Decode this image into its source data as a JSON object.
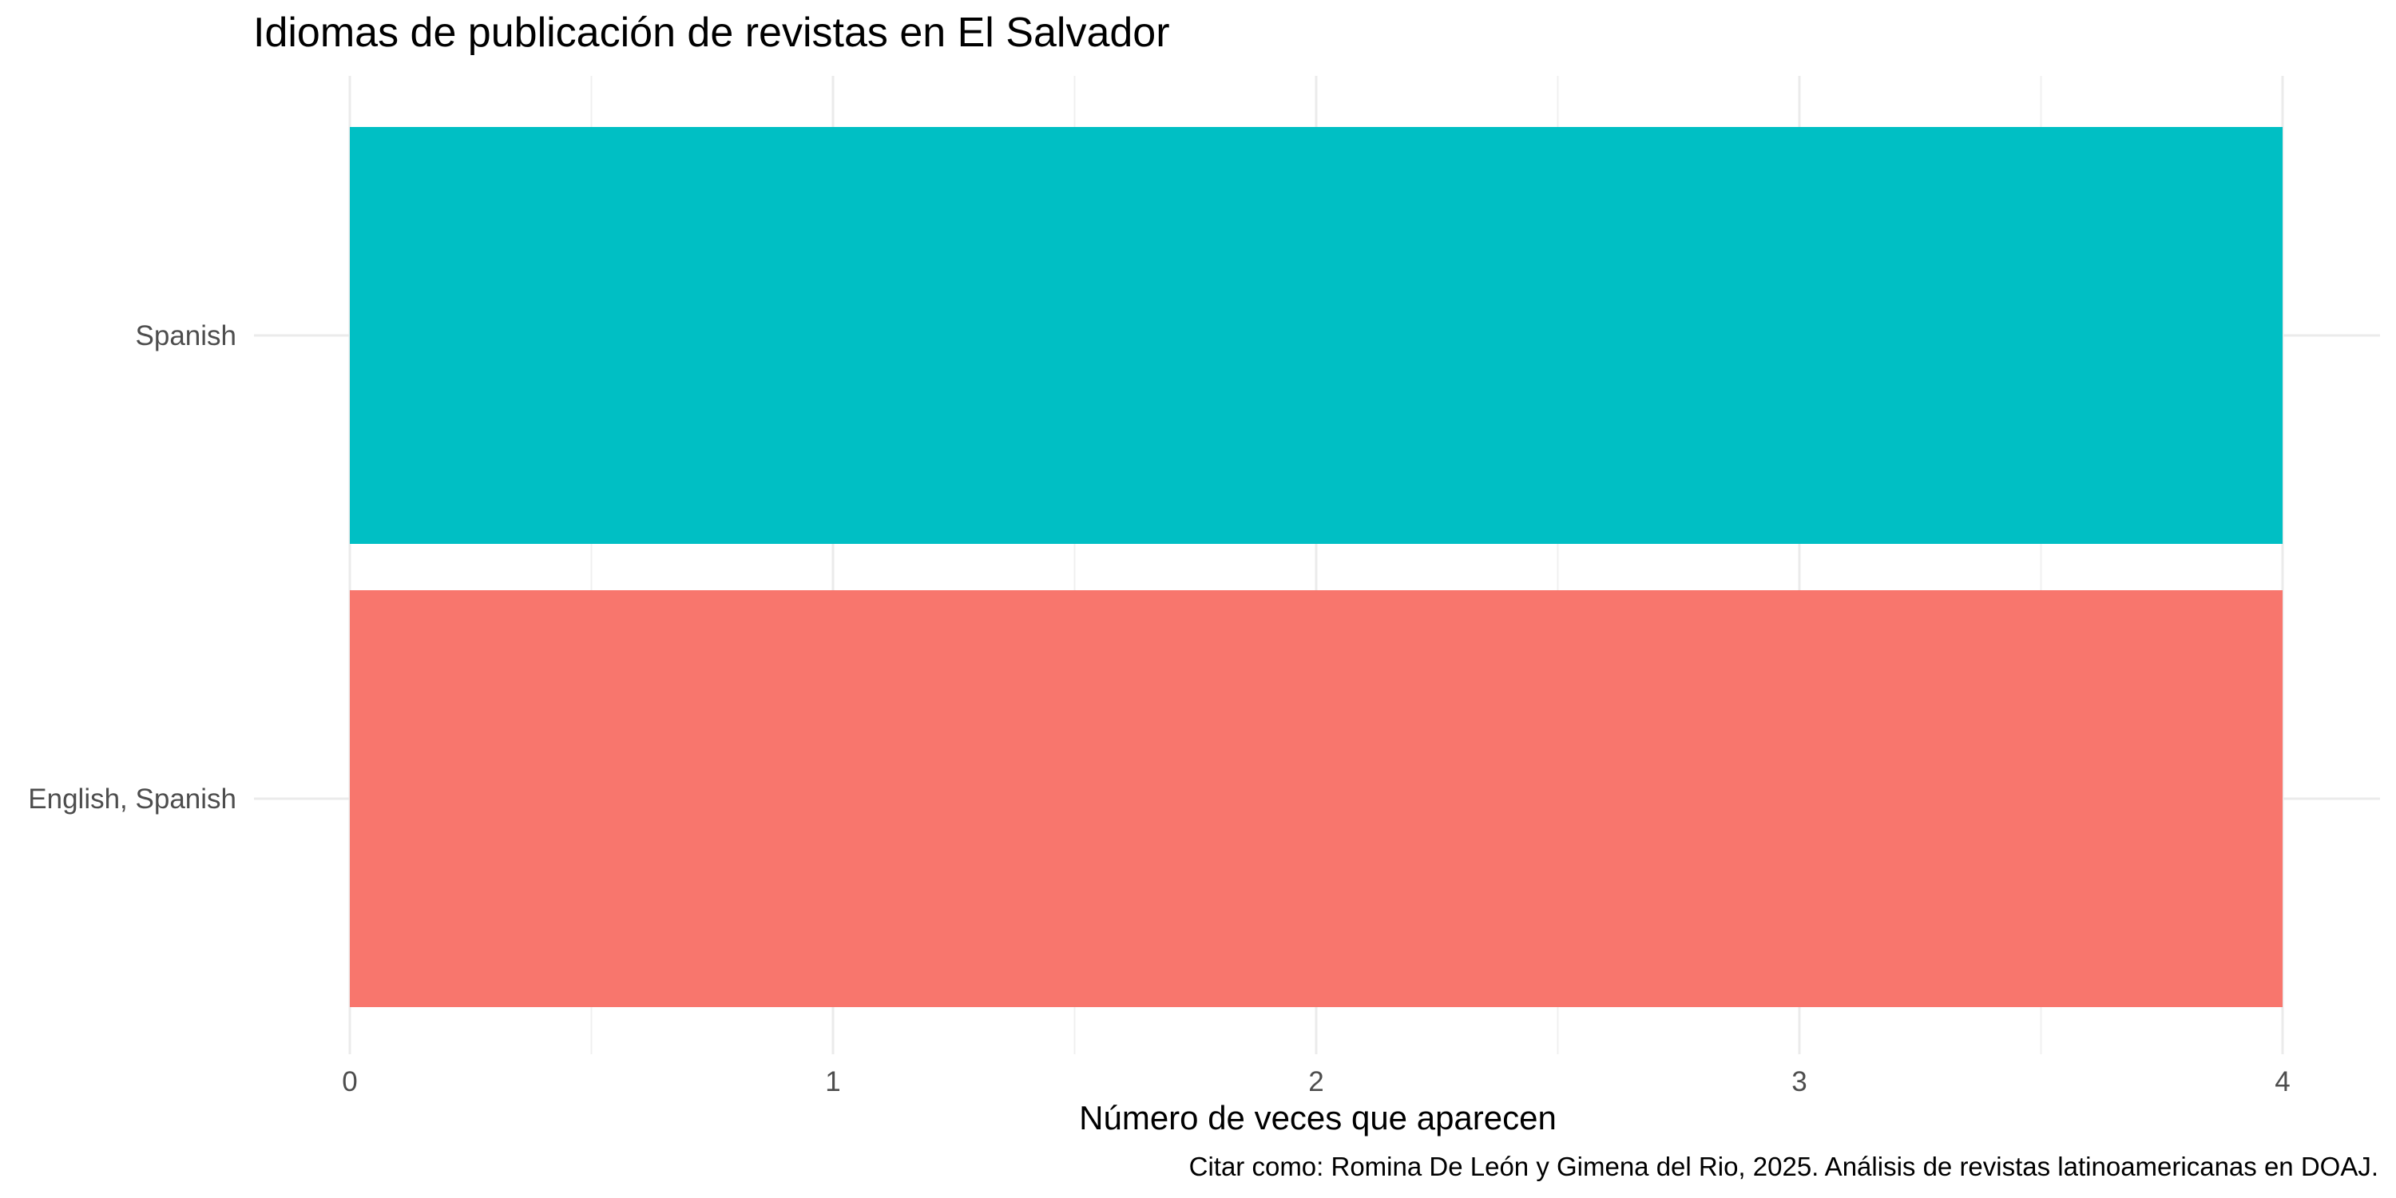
{
  "chart_data": {
    "type": "bar",
    "orientation": "horizontal",
    "title": "Idiomas de publicación de revistas en El Salvador",
    "xlabel": "Número de veces que aparecen",
    "ylabel": "",
    "caption": "Citar como: Romina De León y Gimena del Rio, 2025. Análisis de revistas latinoamericanas en DOAJ.",
    "categories": [
      "English, Spanish",
      "Spanish"
    ],
    "values": [
      4,
      4
    ],
    "bar_colors": [
      "#F8766D",
      "#00BFC4"
    ],
    "xlim": [
      0,
      4
    ],
    "xticks": [
      0,
      1,
      2,
      3,
      4
    ],
    "grid": true,
    "legend": "none"
  }
}
